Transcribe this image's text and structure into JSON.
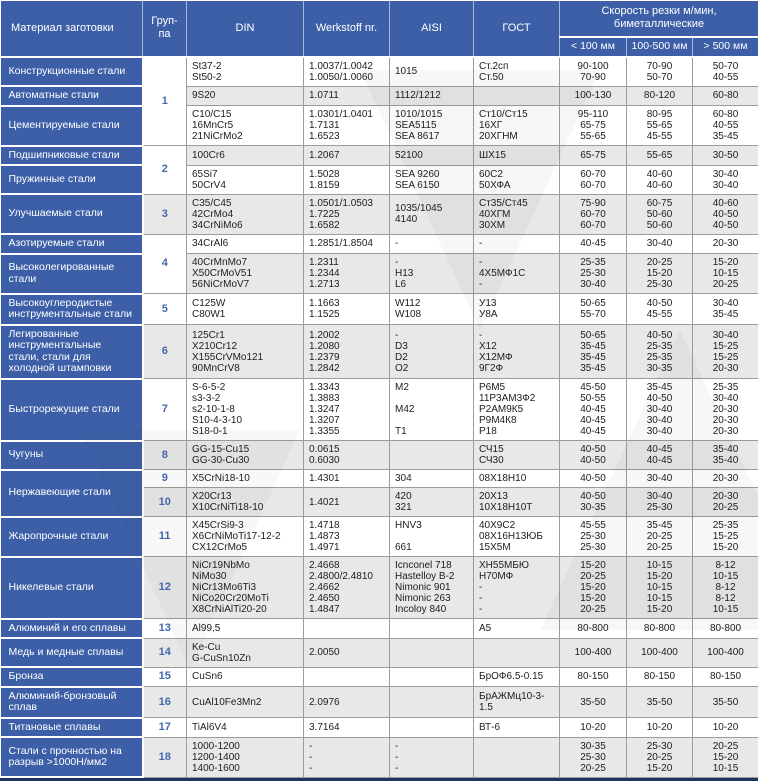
{
  "header": {
    "material": "Материал заготовки",
    "group": "Груп-\nпа",
    "din": "DIN",
    "werkstoff": "Werkstoff nr.",
    "aisi": "AISI",
    "gost": "ГОСТ",
    "speed_title": "Скорость резки м/мин,\nбиметаллические",
    "speed_cols": [
      "< 100 мм",
      "100-500 мм",
      "> 500 мм"
    ]
  },
  "colors": {
    "header_blue": "#3c5fa7",
    "row_alt_gray": "#e8e8e8",
    "group_number_blue": "#4468ad",
    "grid_border": "#9c9c9c",
    "bottom_bar": "#20335c"
  },
  "rows": [
    {
      "material": "Конструкционные стали",
      "mspan": 1,
      "group": "1",
      "gspan": 3,
      "gshade": "light",
      "shade": "light",
      "din": "St37-2\nSt50-2",
      "wnr": "1.0037/1.0042\n1.0050/1.0060",
      "aisi": "1015",
      "gost": "Ст.2сп\nСт.50",
      "v1": "90-100\n70-90",
      "v2": "70-90\n50-70",
      "v3": "50-70\n40-55"
    },
    {
      "material": "Автоматные стали",
      "mspan": 1,
      "group": null,
      "shade": "dark",
      "din": "9S20",
      "wnr": "1.0711",
      "aisi": "1112/1212",
      "gost": "",
      "v1": "100-130",
      "v2": "80-120",
      "v3": "60-80"
    },
    {
      "material": "Цементируемые стали",
      "mspan": 1,
      "group": null,
      "shade": "light",
      "din": "C10/C15\n16MnCr5\n21NiCrMo2",
      "wnr": "1.0301/1.0401\n1.7131\n1.6523",
      "aisi": "1010/1015\nSEA5115\nSEA 8617",
      "gost": "Ст10/Ст15\n16ХГ\n20ХГНМ",
      "v1": "95-110\n65-75\n55-65",
      "v2": "80-95\n55-65\n45-55",
      "v3": "60-80\n40-55\n35-45"
    },
    {
      "material": "Подшипниковые стали",
      "mspan": 1,
      "group": "2",
      "gspan": 2,
      "gshade": "light",
      "shade": "dark",
      "din": "100Cr6",
      "wnr": "1.2067",
      "aisi": "52100",
      "gost": "ШХ15",
      "v1": "65-75",
      "v2": "55-65",
      "v3": "30-50"
    },
    {
      "material": "Пружинные стали",
      "mspan": 1,
      "group": null,
      "shade": "light",
      "din": "65Si7\n50CrV4",
      "wnr": "1.5028\n1.8159",
      "aisi": "SEA 9260\nSEA 6150",
      "gost": "60С2\n50ХФА",
      "v1": "60-70\n60-70",
      "v2": "40-60\n40-60",
      "v3": "30-40\n30-40"
    },
    {
      "material": "Улучшаемые стали",
      "mspan": 1,
      "group": "3",
      "gspan": 1,
      "gshade": "dark",
      "shade": "dark",
      "din": "C35/C45\n42CrMo4\n34CrNiMo6",
      "wnr": "1.0501/1.0503\n1.7225\n1.6582",
      "aisi": "1035/1045\n4140",
      "gost": "Ст35/Ст45\n40ХГМ\n30ХМ",
      "v1": "75-90\n60-70\n60-70",
      "v2": "60-75\n50-60\n50-60",
      "v3": "40-60\n40-50\n40-50"
    },
    {
      "material": "Азотируемые стали",
      "mspan": 1,
      "group": "4",
      "gspan": 2,
      "gshade": "light",
      "shade": "light",
      "din": "34CrAl6",
      "wnr": "1.2851/1.8504",
      "aisi": "-",
      "gost": "-",
      "v1": "40-45",
      "v2": "30-40",
      "v3": "20-30"
    },
    {
      "material": "Высоколегированные\nстали",
      "mspan": 1,
      "group": null,
      "shade": "dark",
      "din": "40CrMnMo7\nX50CrMoV51\n56NiCrMoV7",
      "wnr": "1.2311\n1.2344\n1.2713",
      "aisi": "-\nH13\nL6",
      "gost": "-\n4Х5МФ1С\n-",
      "v1": "25-35\n25-30\n30-40",
      "v2": "20-25\n15-20\n25-30",
      "v3": "15-20\n10-15\n20-25"
    },
    {
      "material": "Высокоуглеродистые\nинструментальные стали",
      "mspan": 1,
      "group": "5",
      "gspan": 1,
      "gshade": "light",
      "shade": "light",
      "din": "C125W\nC80W1",
      "wnr": "1.1663\n1.1525",
      "aisi": "W112\nW108",
      "gost": "У13\nУ8А",
      "v1": "50-65\n55-70",
      "v2": "40-50\n45-55",
      "v3": "30-40\n35-45"
    },
    {
      "material": "Легированные\nинструментальные\nстали, стали для\nхолодной штамповки",
      "mspan": 1,
      "group": "6",
      "gspan": 1,
      "gshade": "dark",
      "shade": "dark",
      "din": "125Cr1\nX210Cr12\nX155CrVMo121\n90MnCrV8",
      "wnr": "1.2002\n1.2080\n1.2379\n1.2842",
      "aisi": "-\nD3\nD2\nO2",
      "gost": "-\nХ12\nХ12МФ\n9Г2Ф",
      "v1": "50-65\n35-45\n35-45\n35-45",
      "v2": "40-50\n25-35\n25-35\n30-35",
      "v3": "30-40\n15-25\n15-25\n20-30"
    },
    {
      "material": "Быстрорежущие стали",
      "mspan": 1,
      "group": "7",
      "gspan": 1,
      "gshade": "light",
      "shade": "light",
      "din": "S-6-5-2\ns3-3-2\ns2-10-1-8\nS10-4-3-10\nS18-0-1",
      "wnr": "1.3343\n1.3883\n1.3247\n1.3207\n1.3355",
      "aisi": "M2\n\nM42\n\nT1",
      "gost": "Р6М5\n11Р3АМ3Ф2\nР2АМ9К5\nР9М4К8\nР18",
      "v1": "45-50\n50-55\n40-45\n40-45\n40-45",
      "v2": "35-45\n40-50\n30-40\n30-40\n30-40",
      "v3": "25-35\n30-40\n20-30\n20-30\n20-30"
    },
    {
      "material": "Чугуны",
      "mspan": 1,
      "group": "8",
      "gspan": 1,
      "gshade": "dark",
      "shade": "dark",
      "din": "GG-15-Cu15\nGG-30-Cu30",
      "wnr": "0.0615\n0.6030",
      "aisi": "",
      "gost": "СЧ15\nСЧ30",
      "v1": "40-50\n40-50",
      "v2": "40-45\n40-45",
      "v3": "35-40\n35-40"
    },
    {
      "material": "Нержавеющие стали",
      "mspan": 2,
      "group": "9",
      "gspan": 1,
      "gshade": "light",
      "shade": "light",
      "din": "X5CrNi18-10",
      "wnr": "1.4301",
      "aisi": "304",
      "gost": "08Х18Н10",
      "v1": "40-50",
      "v2": "30-40",
      "v3": "20-30"
    },
    {
      "material": null,
      "group": "10",
      "gspan": 1,
      "gshade": "dark",
      "shade": "dark",
      "din": "X20Cr13\nX10CrNiTi18-10",
      "wnr": "1.4021",
      "aisi": "420\n321",
      "gost": "20Х13\n10Х18Н10Т",
      "v1": "40-50\n30-35",
      "v2": "30-40\n25-30",
      "v3": "20-30\n20-25"
    },
    {
      "material": "Жаропрочные стали",
      "mspan": 1,
      "group": "11",
      "gspan": 1,
      "gshade": "light",
      "shade": "light",
      "din": "X45CrSi9-3\nX6CrNiMoTi17-12-2\nCX12CrMo5",
      "wnr": "1.4718\n1.4873\n1.4971",
      "aisi": "HNV3\n\n661",
      "gost": "40Х9С2\n08Х16Н13ЮБ\n15Х5М",
      "v1": "45-55\n25-30\n25-30",
      "v2": "35-45\n20-25\n20-25",
      "v3": "25-35\n15-25\n15-20"
    },
    {
      "material": "Никелевые стали",
      "mspan": 1,
      "group": "12",
      "gspan": 1,
      "gshade": "dark",
      "shade": "dark",
      "din": "NiCr19NbMo\nNiMo30\nNiCr13Mo6Ti3\nNiCo20Cr20MoTi\nX8CrNiAlTi20-20",
      "wnr": "2.4668\n2.4800/2.4810\n2.4662\n2.4650\n1.4847",
      "aisi": "Icnconel 718\nHastelloy B-2\nNimonic 901\nNimonic 263\nIncoloy 840",
      "gost": "ХН55МБЮ\nН70МФ\n-\n-\n-",
      "v1": "15-20\n20-25\n15-20\n15-20\n20-25",
      "v2": "10-15\n15-20\n10-15\n10-15\n15-20",
      "v3": "8-12\n10-15\n8-12\n8-12\n10-15"
    },
    {
      "material": "Алюминий и его сплавы",
      "mspan": 1,
      "group": "13",
      "gspan": 1,
      "gshade": "light",
      "shade": "light",
      "din": "Al99,5",
      "wnr": "",
      "aisi": "",
      "gost": "А5",
      "v1": "80-800",
      "v2": "80-800",
      "v3": "80-800"
    },
    {
      "material": "Медь и медные сплавы",
      "mspan": 1,
      "group": "14",
      "gspan": 1,
      "gshade": "dark",
      "shade": "dark",
      "din": "Ke-Cu\nG-CuSn10Zn",
      "wnr": "2.0050",
      "aisi": "",
      "gost": "",
      "v1": "100-400",
      "v2": "100-400",
      "v3": "100-400"
    },
    {
      "material": "Бронза",
      "mspan": 1,
      "group": "15",
      "gspan": 1,
      "gshade": "light",
      "shade": "light",
      "din": "CuSn6",
      "wnr": "",
      "aisi": "",
      "gost": "БрОФ6.5-0.15",
      "v1": "80-150",
      "v2": "80-150",
      "v3": "80-150"
    },
    {
      "material": "Алюминий-бронзовый\nсплав",
      "mspan": 1,
      "group": "16",
      "gspan": 1,
      "gshade": "dark",
      "shade": "dark",
      "din": "CuAl10Fe3Mn2",
      "wnr": "2.0976",
      "aisi": "",
      "gost": "БрАЖМц10-3-\n1.5",
      "v1": "35-50",
      "v2": "35-50",
      "v3": "35-50"
    },
    {
      "material": "Титановые сплавы",
      "mspan": 1,
      "group": "17",
      "gspan": 1,
      "gshade": "light",
      "shade": "light",
      "din": "TiAl6V4",
      "wnr": "3.7164",
      "aisi": "",
      "gost": "ВТ-6",
      "v1": "10-20",
      "v2": "10-20",
      "v3": "10-20"
    },
    {
      "material": "Стали с прочностью на\nразрыв >1000Н/мм2",
      "mspan": 1,
      "group": "18",
      "gspan": 1,
      "gshade": "dark",
      "shade": "dark",
      "din": "1000-1200\n1200-1400\n1400-1600",
      "wnr": "-\n-\n-",
      "aisi": "-\n-\n-",
      "gost": "",
      "v1": "30-35\n25-30\n20-25",
      "v2": "25-30\n20-25\n15-20",
      "v3": "20-25\n15-20\n10-15"
    }
  ]
}
